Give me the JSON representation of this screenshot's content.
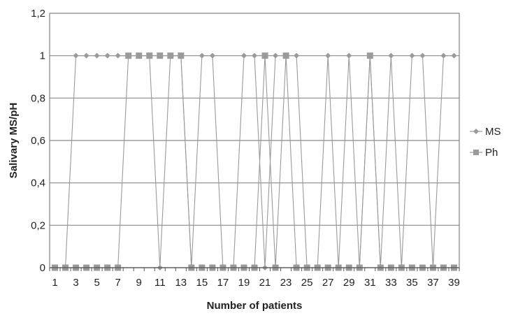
{
  "chart_data": {
    "type": "line",
    "xlabel": "Number of patients",
    "ylabel": "Salivary MS/pH",
    "ylim": [
      0,
      1.2
    ],
    "y_ticks": [
      "0",
      "0,2",
      "0,4",
      "0,6",
      "0,8",
      "1",
      "1,2"
    ],
    "y_tick_values": [
      0,
      0.2,
      0.4,
      0.6,
      0.8,
      1,
      1.2
    ],
    "x": [
      1,
      2,
      3,
      4,
      5,
      6,
      7,
      8,
      9,
      10,
      11,
      12,
      13,
      14,
      15,
      16,
      17,
      18,
      19,
      20,
      21,
      22,
      23,
      24,
      25,
      26,
      27,
      28,
      29,
      30,
      31,
      32,
      33,
      34,
      35,
      36,
      37,
      38,
      39
    ],
    "x_tick_labels": [
      "1",
      "3",
      "5",
      "7",
      "9",
      "11",
      "13",
      "15",
      "17",
      "19",
      "21",
      "23",
      "25",
      "27",
      "29",
      "31",
      "33",
      "35",
      "37",
      "39"
    ],
    "grid": true,
    "legend_position": "right",
    "series": [
      {
        "name": "MS",
        "marker": "diamond",
        "color": "#9a9a9a",
        "values": [
          0,
          0,
          1,
          1,
          1,
          1,
          1,
          1,
          1,
          1,
          0,
          1,
          1,
          0,
          1,
          1,
          0,
          0,
          1,
          1,
          0,
          1,
          1,
          1,
          0,
          0,
          1,
          0,
          1,
          0,
          1,
          0,
          1,
          0,
          1,
          1,
          0,
          1,
          1
        ]
      },
      {
        "name": "Ph",
        "marker": "square",
        "color": "#9a9a9a",
        "values": [
          0,
          0,
          0,
          0,
          0,
          0,
          0,
          1,
          1,
          1,
          1,
          1,
          1,
          0,
          0,
          0,
          0,
          0,
          0,
          0,
          1,
          0,
          1,
          0,
          0,
          0,
          0,
          0,
          0,
          0,
          1,
          0,
          0,
          0,
          0,
          0,
          0,
          0,
          0
        ]
      }
    ]
  }
}
